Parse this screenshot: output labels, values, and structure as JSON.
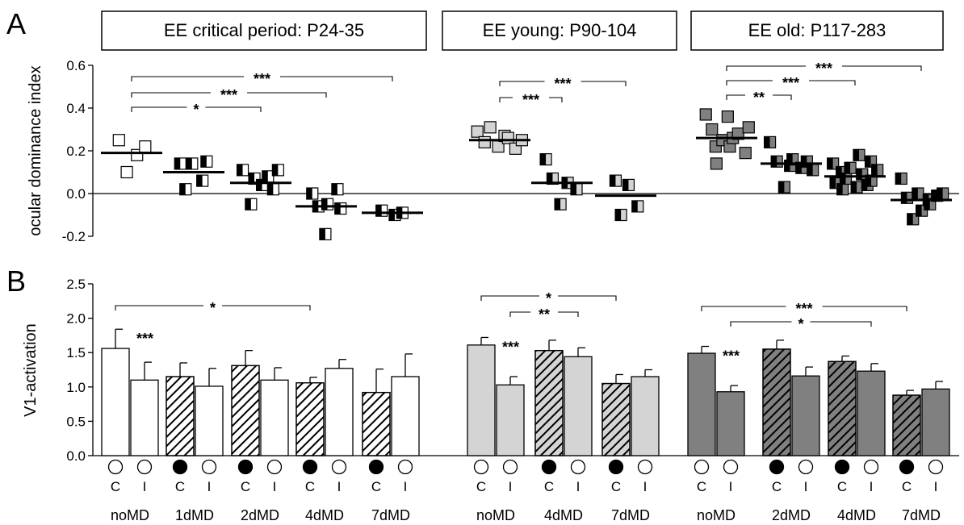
{
  "figure": {
    "panel_a_label": "A",
    "panel_b_label": "B"
  },
  "colors": {
    "critical_period": "#ffffff",
    "young": "#d4d4d4",
    "old": "#808080",
    "ink": "#000000"
  },
  "chart_data": [
    {
      "type": "scatter",
      "panel": "A",
      "ylabel": "ocular dominance index",
      "ylim": [
        -0.2,
        0.6
      ],
      "yticks": [
        "-0.2",
        "0.0",
        "0.2",
        "0.4",
        "0.6"
      ],
      "group_titles": [
        "EE critical period: P24-35",
        "EE young: P90-104",
        "EE old: P117-283"
      ],
      "categories": [
        "noMD",
        "1dMD",
        "2dMD",
        "4dMD",
        "7dMD",
        "noMD",
        "4dMD",
        "7dMD",
        "noMD",
        "2dMD",
        "4dMD",
        "7dMD"
      ],
      "series": [
        {
          "group": "EE critical period: P24-35",
          "condition": "noMD",
          "marker": "open",
          "mean": 0.19,
          "points": [
            0.25,
            0.1,
            0.18,
            0.22
          ]
        },
        {
          "group": "EE critical period: P24-35",
          "condition": "1dMD",
          "marker": "half-filled",
          "mean": 0.1,
          "points": [
            0.14,
            0.02,
            0.14,
            0.06,
            0.15
          ]
        },
        {
          "group": "EE critical period: P24-35",
          "condition": "2dMD",
          "marker": "half-filled",
          "mean": 0.05,
          "points": [
            0.11,
            -0.05,
            0.07,
            0.04,
            0.08,
            0.02,
            0.11
          ]
        },
        {
          "group": "EE critical period: P24-35",
          "condition": "4dMD",
          "marker": "half-filled",
          "mean": -0.06,
          "points": [
            0.0,
            -0.06,
            -0.19,
            -0.05,
            0.02,
            -0.07
          ]
        },
        {
          "group": "EE critical period: P24-35",
          "condition": "7dMD",
          "marker": "half-filled",
          "mean": -0.09,
          "points": [
            -0.08,
            -0.1,
            -0.09
          ]
        },
        {
          "group": "EE young: P90-104",
          "condition": "noMD",
          "marker": "open",
          "mean": 0.25,
          "points": [
            0.29,
            0.24,
            0.31,
            0.22,
            0.27,
            0.26,
            0.21,
            0.25
          ]
        },
        {
          "group": "EE young: P90-104",
          "condition": "4dMD",
          "marker": "half-filled",
          "mean": 0.05,
          "points": [
            0.16,
            0.07,
            -0.05,
            0.05,
            0.02
          ]
        },
        {
          "group": "EE young: P90-104",
          "condition": "7dMD",
          "marker": "half-filled",
          "mean": -0.01,
          "points": [
            0.06,
            -0.1,
            0.04,
            -0.06
          ]
        },
        {
          "group": "EE old: P117-283",
          "condition": "noMD",
          "marker": "open",
          "mean": 0.26,
          "points": [
            0.37,
            0.3,
            0.22,
            0.14,
            0.25,
            0.36,
            0.22,
            0.26,
            0.28,
            0.19,
            0.31
          ]
        },
        {
          "group": "EE old: P117-283",
          "condition": "2dMD",
          "marker": "half-filled",
          "mean": 0.14,
          "points": [
            0.24,
            0.15,
            0.03,
            0.13,
            0.16,
            0.12,
            0.15,
            0.11
          ]
        },
        {
          "group": "EE old: P117-283",
          "condition": "4dMD",
          "marker": "half-filled",
          "mean": 0.08,
          "points": [
            0.14,
            0.05,
            0.1,
            0.02,
            0.07,
            0.12,
            0.03,
            0.18,
            0.09,
            0.04,
            0.15,
            0.06,
            0.11
          ]
        },
        {
          "group": "EE old: P117-283",
          "condition": "7dMD",
          "marker": "half-filled",
          "mean": -0.03,
          "points": [
            0.07,
            -0.02,
            -0.12,
            0.0,
            -0.08,
            -0.03,
            -0.05,
            -0.01,
            0.0
          ]
        }
      ],
      "significance": [
        {
          "from": 0,
          "to": 4,
          "label": "***"
        },
        {
          "from": 0,
          "to": 3,
          "label": "***"
        },
        {
          "from": 0,
          "to": 2,
          "label": "*"
        },
        {
          "from": 5,
          "to": 7,
          "label": "***"
        },
        {
          "from": 5,
          "to": 6,
          "label": "***"
        },
        {
          "from": 8,
          "to": 11,
          "label": "***"
        },
        {
          "from": 8,
          "to": 10,
          "label": "***"
        },
        {
          "from": 8,
          "to": 9,
          "label": "**"
        }
      ]
    },
    {
      "type": "bar",
      "panel": "B",
      "ylabel": "V1-activation",
      "ylim": [
        0.0,
        2.5
      ],
      "yticks": [
        "0.0",
        "0.5",
        "1.0",
        "1.5",
        "2.0",
        "2.5"
      ],
      "categories": [
        "noMD",
        "1dMD",
        "2dMD",
        "4dMD",
        "7dMD",
        "noMD",
        "4dMD",
        "7dMD",
        "noMD",
        "2dMD",
        "4dMD",
        "7dMD"
      ],
      "bar_labels": [
        "C",
        "I"
      ],
      "series": [
        {
          "name": "C",
          "values": [
            1.56,
            1.15,
            1.31,
            1.06,
            0.92,
            1.61,
            1.53,
            1.05,
            1.49,
            1.55,
            1.37,
            0.88
          ],
          "errors": [
            0.28,
            0.2,
            0.22,
            0.08,
            0.34,
            0.11,
            0.15,
            0.13,
            0.1,
            0.13,
            0.08,
            0.07
          ]
        },
        {
          "name": "I",
          "values": [
            1.1,
            1.01,
            1.1,
            1.27,
            1.15,
            1.03,
            1.44,
            1.15,
            0.93,
            1.16,
            1.23,
            0.97
          ],
          "errors": [
            0.26,
            0.26,
            0.18,
            0.13,
            0.33,
            0.12,
            0.13,
            0.1,
            0.09,
            0.13,
            0.11,
            0.11
          ]
        }
      ],
      "c_eye_deprived": [
        false,
        true,
        true,
        true,
        true,
        false,
        true,
        true,
        false,
        true,
        true,
        true
      ],
      "within_pair_significance": [
        {
          "category": 0,
          "label": "***"
        },
        {
          "category": 5,
          "label": "***"
        },
        {
          "category": 8,
          "label": "***"
        }
      ],
      "significance": [
        {
          "from_category": 0,
          "from_bar": "C",
          "to_category": 3,
          "to_bar": "C",
          "label": "*"
        },
        {
          "from_category": 5,
          "from_bar": "C",
          "to_category": 7,
          "to_bar": "C",
          "label": "*"
        },
        {
          "from_category": 5,
          "from_bar": "I",
          "to_category": 6,
          "to_bar": "I",
          "label": "**"
        },
        {
          "from_category": 8,
          "from_bar": "C",
          "to_category": 11,
          "to_bar": "C",
          "label": "***"
        },
        {
          "from_category": 8,
          "from_bar": "I",
          "to_category": 10,
          "to_bar": "I",
          "label": "*"
        }
      ]
    }
  ]
}
